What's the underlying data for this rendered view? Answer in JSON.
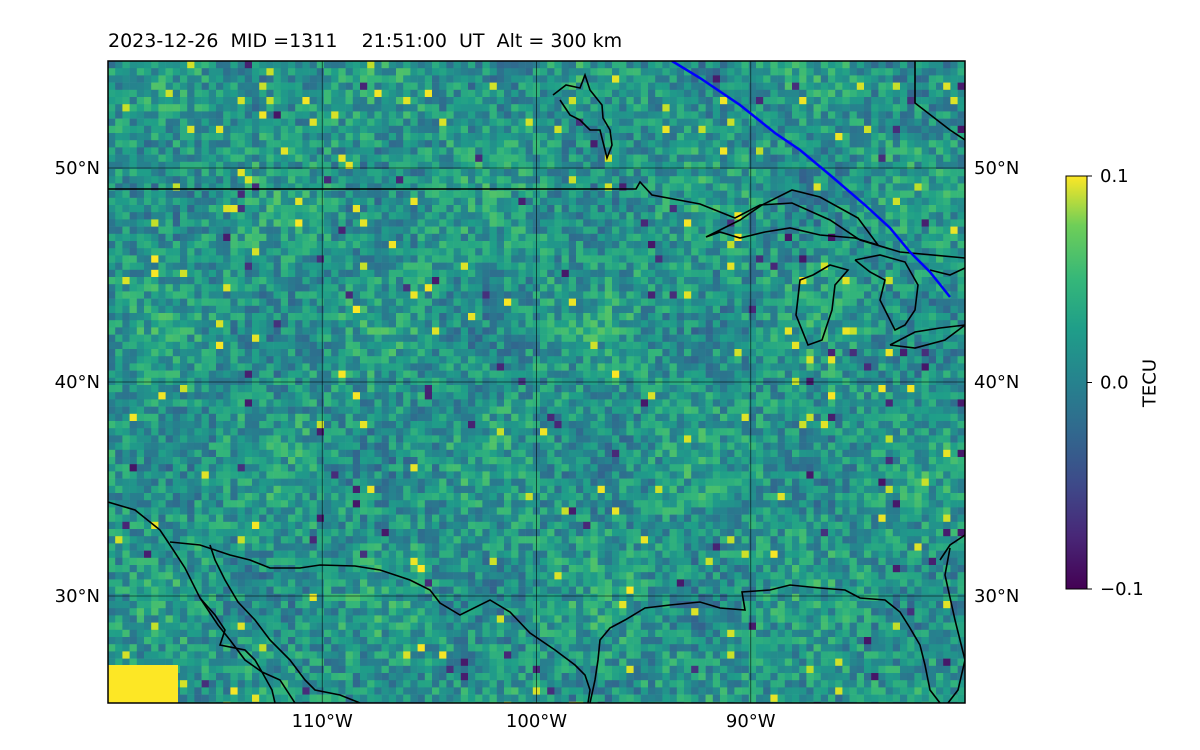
{
  "title": "2023-12-26  MID =1311    21:51:00  UT  Alt = 300 km",
  "map": {
    "projection": "PlateCarree",
    "lon_range": [
      -120,
      -80
    ],
    "lat_range": [
      25,
      55
    ],
    "gridlines": true
  },
  "axes": {
    "x_ticks": [
      {
        "lon": -110,
        "label": "110°W"
      },
      {
        "lon": -100,
        "label": "100°W"
      },
      {
        "lon": -90,
        "label": "90°W"
      }
    ],
    "y_ticks": [
      {
        "lat": 50,
        "label": "50°N"
      },
      {
        "lat": 40,
        "label": "40°N"
      },
      {
        "lat": 30,
        "label": "30°N"
      }
    ]
  },
  "colorbar": {
    "label": "TECU",
    "colormap": "viridis",
    "min": -0.1,
    "max": 0.1,
    "ticks": [
      {
        "value": 0.1,
        "label": "0.1"
      },
      {
        "value": 0.0,
        "label": "0.0"
      },
      {
        "value": -0.1,
        "label": "−0.1"
      }
    ]
  },
  "overlays": {
    "satellite_track_color": "#0000ff",
    "coastline_color": "#000000"
  }
}
